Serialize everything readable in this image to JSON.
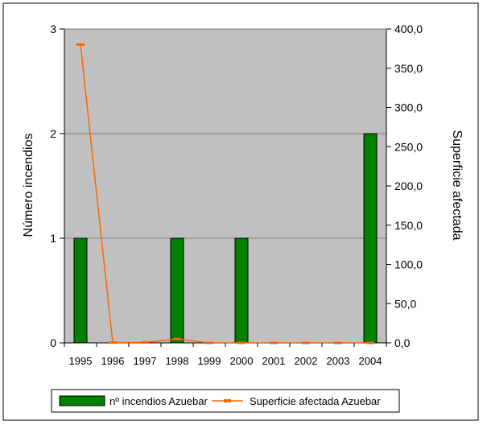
{
  "chart_data": {
    "type": "bar+line",
    "categories": [
      "1995",
      "1996",
      "1997",
      "1998",
      "1999",
      "2000",
      "2001",
      "2002",
      "2003",
      "2004"
    ],
    "series": [
      {
        "name": "nº incendios Azuebar",
        "kind": "bar",
        "axis": "left",
        "color": "#008000",
        "values": [
          1,
          0,
          0,
          1,
          0,
          1,
          0,
          0,
          0,
          2
        ]
      },
      {
        "name": "Superficie afectada Azuebar",
        "kind": "line",
        "axis": "right",
        "color": "#ff6600",
        "values": [
          380,
          0.5,
          0.5,
          5,
          0,
          0,
          0,
          0,
          0,
          0
        ]
      }
    ],
    "ylabel": "Número incendios",
    "y2label": "Superficie afectada",
    "ylim": [
      0,
      3
    ],
    "y2lim": [
      0,
      400
    ],
    "yticks": [
      "0",
      "1",
      "2",
      "3"
    ],
    "y2ticks": [
      "0,0",
      "50,0",
      "100,0",
      "150,0",
      "200,0",
      "250,0",
      "300,0",
      "350,0",
      "400,0"
    ],
    "plot_background": "#c0c0c0",
    "grid": true,
    "legend": "bottom"
  }
}
